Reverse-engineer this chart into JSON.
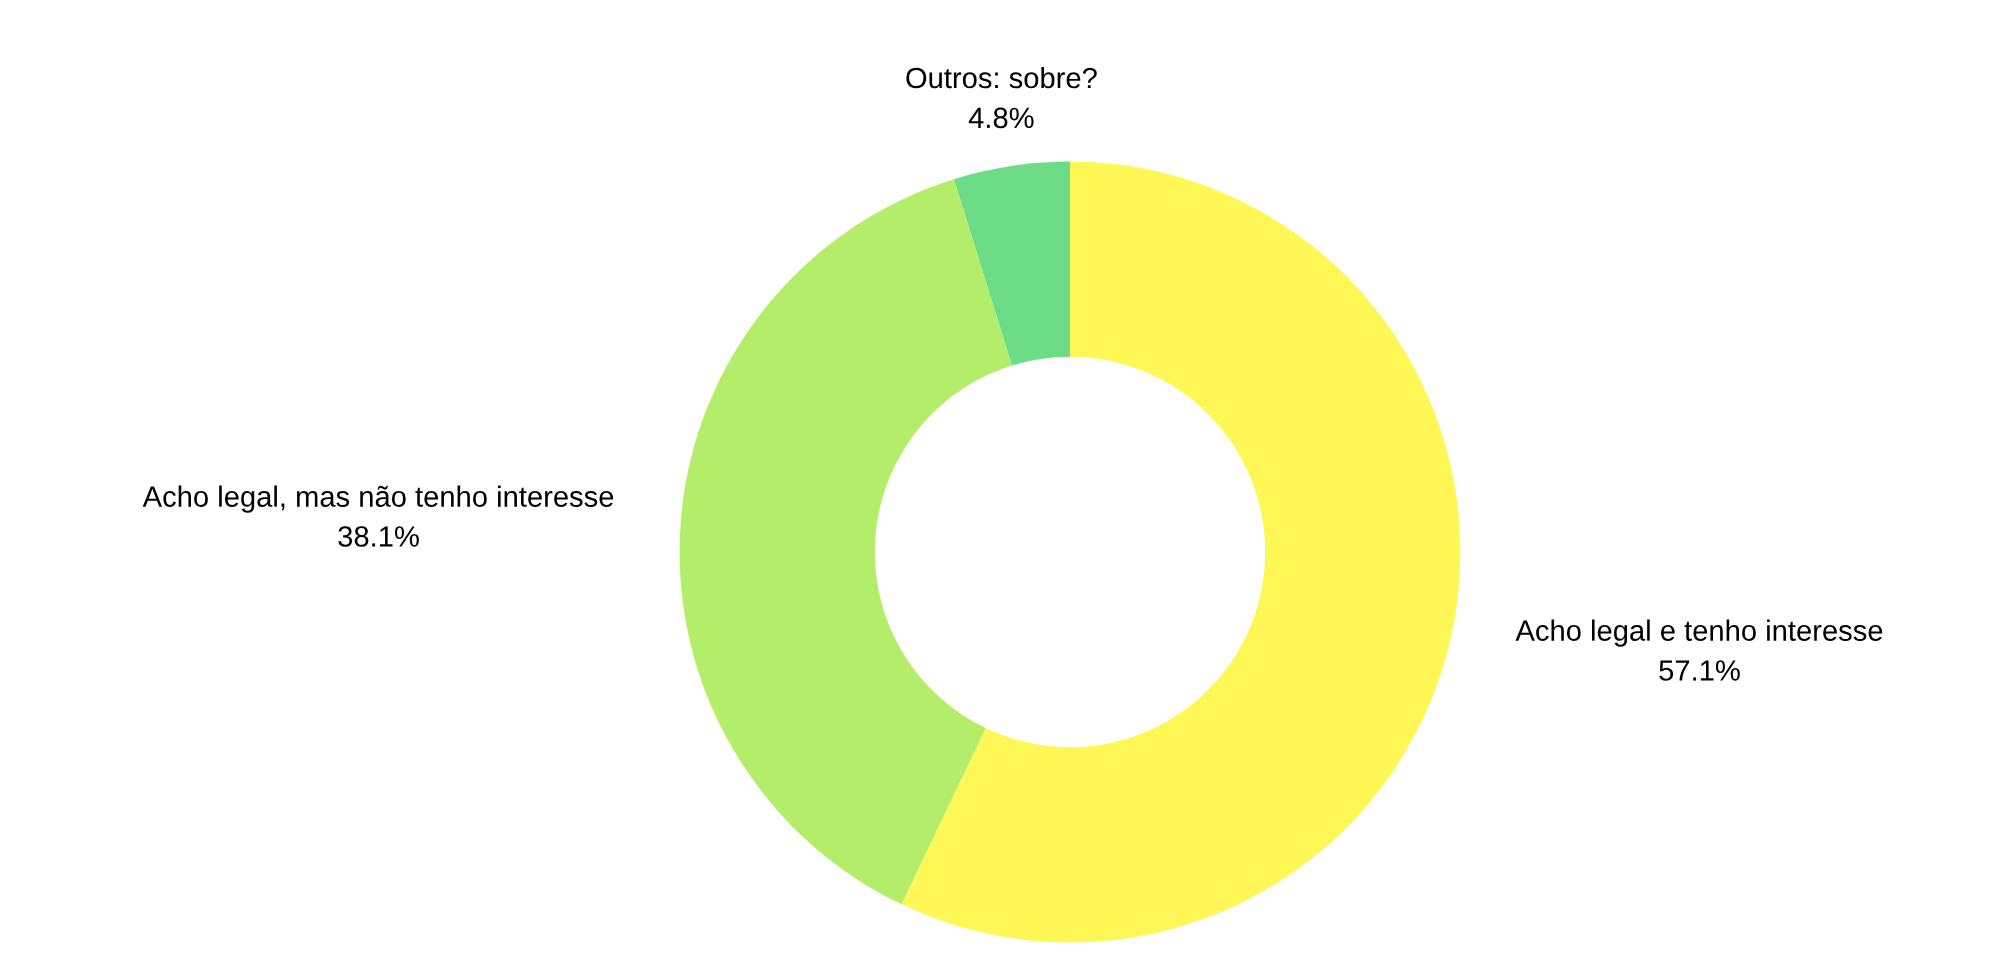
{
  "chart_data": {
    "type": "donut",
    "categories": [
      "Acho legal e tenho interesse",
      "Acho legal, mas não tenho interesse",
      "Outros: sobre?"
    ],
    "values": [
      57.1,
      38.1,
      4.8
    ],
    "colors": [
      "#fef756",
      "#b3ed6a",
      "#6ddc86"
    ],
    "value_labels": [
      "57.1%",
      "38.1%",
      "4.8%"
    ],
    "legend": false
  }
}
